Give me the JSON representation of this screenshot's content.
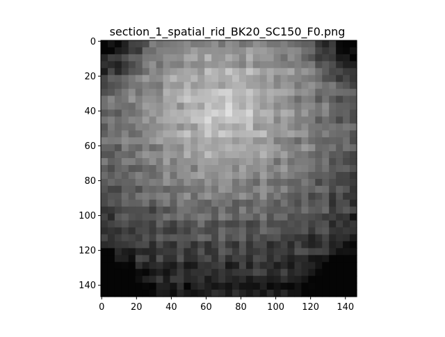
{
  "chart_data": {
    "type": "heatmap",
    "title": "section_1_spatial_rid_BK20_SC150_F0.png",
    "xlabel": "",
    "ylabel": "",
    "colormap": "gray",
    "xlim": [
      -0.5,
      146.5
    ],
    "ylim": [
      146.5,
      -0.5
    ],
    "x_ticks": [
      0,
      20,
      40,
      60,
      80,
      100,
      120,
      140
    ],
    "y_ticks": [
      0,
      20,
      40,
      60,
      80,
      100,
      120,
      140
    ],
    "grid_rows": 37,
    "grid_cols": 37,
    "bright_center": [
      70,
      40
    ],
    "texture": "diagonal checkered blocks, brighter upper-center, darker corners"
  }
}
